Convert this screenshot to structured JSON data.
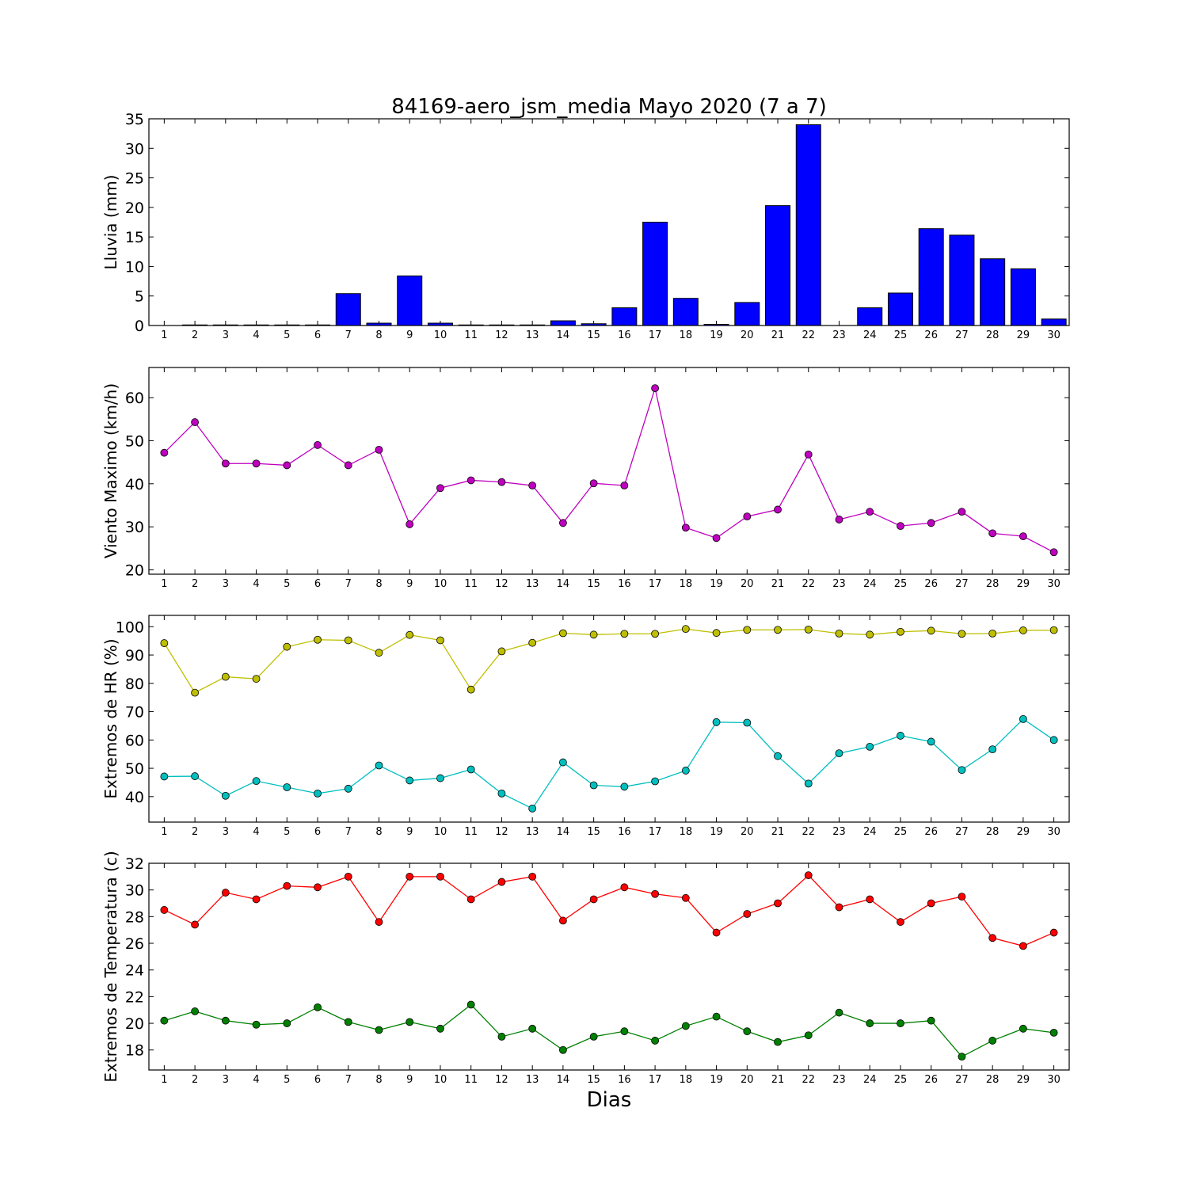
{
  "title": "84169-aero_jsm_media Mayo 2020  (7 a 7)",
  "xlabel": "Dias",
  "chart_data": [
    {
      "type": "bar",
      "ylabel": "Lluvia (mm)",
      "ylim": [
        0,
        35
      ],
      "yticks": [
        0,
        5,
        10,
        15,
        20,
        25,
        30,
        35
      ],
      "categories": [
        1,
        2,
        3,
        4,
        5,
        6,
        7,
        8,
        9,
        10,
        11,
        12,
        13,
        14,
        15,
        16,
        17,
        18,
        19,
        20,
        21,
        22,
        23,
        24,
        25,
        26,
        27,
        28,
        29,
        30
      ],
      "series": [
        {
          "color": "#0000ff",
          "values": [
            0,
            0.1,
            0.1,
            0.1,
            0.1,
            0.1,
            5.4,
            0.4,
            8.4,
            0.4,
            0.1,
            0.1,
            0.1,
            0.8,
            0.3,
            3.0,
            17.5,
            4.6,
            0.2,
            3.9,
            20.3,
            34.0,
            0,
            3.0,
            5.5,
            16.4,
            15.3,
            11.3,
            9.6,
            1.1
          ]
        }
      ],
      "grid": false
    },
    {
      "type": "line",
      "ylabel": "Viento Maximo (km/h)",
      "ylim": [
        19,
        67
      ],
      "yticks": [
        20,
        30,
        40,
        50,
        60
      ],
      "categories": [
        1,
        2,
        3,
        4,
        5,
        6,
        7,
        8,
        9,
        10,
        11,
        12,
        13,
        14,
        15,
        16,
        17,
        18,
        19,
        20,
        21,
        22,
        23,
        24,
        25,
        26,
        27,
        28,
        29,
        30
      ],
      "series": [
        {
          "color": "#bf00bf",
          "values": [
            47.2,
            54.3,
            44.7,
            44.7,
            44.3,
            49.0,
            44.3,
            47.9,
            30.6,
            39.0,
            40.8,
            40.4,
            39.6,
            30.9,
            40.1,
            39.6,
            62.2,
            29.8,
            27.4,
            32.4,
            34.0,
            46.8,
            31.7,
            33.5,
            30.2,
            30.9,
            33.5,
            28.5,
            27.8,
            24.1
          ]
        }
      ],
      "grid": false
    },
    {
      "type": "line",
      "ylabel": "Extremos de HR (%)",
      "ylim": [
        31,
        104
      ],
      "yticks": [
        40,
        50,
        60,
        70,
        80,
        90,
        100
      ],
      "categories": [
        1,
        2,
        3,
        4,
        5,
        6,
        7,
        8,
        9,
        10,
        11,
        12,
        13,
        14,
        15,
        16,
        17,
        18,
        19,
        20,
        21,
        22,
        23,
        24,
        25,
        26,
        27,
        28,
        29,
        30
      ],
      "series": [
        {
          "color": "#bfbf00",
          "values": [
            94.2,
            76.7,
            82.3,
            81.6,
            92.9,
            95.4,
            95.2,
            90.8,
            97.1,
            95.2,
            77.8,
            91.3,
            94.3,
            97.7,
            97.2,
            97.5,
            97.5,
            99.2,
            97.8,
            98.9,
            98.9,
            99.0,
            97.6,
            97.2,
            98.2,
            98.6,
            97.5,
            97.6,
            98.7,
            98.8
          ]
        },
        {
          "color": "#00bfbf",
          "values": [
            47.1,
            47.2,
            40.3,
            45.5,
            43.3,
            41.1,
            42.8,
            51.0,
            45.7,
            46.5,
            49.6,
            41.1,
            35.8,
            52.1,
            44.0,
            43.5,
            45.4,
            49.2,
            66.3,
            66.1,
            54.3,
            44.6,
            55.3,
            57.6,
            61.5,
            59.4,
            49.4,
            56.7,
            67.4,
            60.0
          ]
        }
      ],
      "grid": false
    },
    {
      "type": "line",
      "ylabel": "Extremos de Temperatura (c)",
      "ylim": [
        16.5,
        32
      ],
      "yticks": [
        18,
        20,
        22,
        24,
        26,
        28,
        30,
        32
      ],
      "categories": [
        1,
        2,
        3,
        4,
        5,
        6,
        7,
        8,
        9,
        10,
        11,
        12,
        13,
        14,
        15,
        16,
        17,
        18,
        19,
        20,
        21,
        22,
        23,
        24,
        25,
        26,
        27,
        28,
        29,
        30
      ],
      "series": [
        {
          "color": "#ff0000",
          "values": [
            28.5,
            27.4,
            29.8,
            29.3,
            30.3,
            30.2,
            31.0,
            27.6,
            31.0,
            31.0,
            29.3,
            30.6,
            31.0,
            27.7,
            29.3,
            30.2,
            29.7,
            29.4,
            26.8,
            28.2,
            29.0,
            31.1,
            28.7,
            29.3,
            27.6,
            29.0,
            29.5,
            26.4,
            25.8,
            26.8
          ]
        },
        {
          "color": "#008000",
          "values": [
            20.2,
            20.9,
            20.2,
            19.9,
            20.0,
            21.2,
            20.1,
            19.5,
            20.1,
            19.6,
            21.4,
            19.0,
            19.6,
            18.0,
            19.0,
            19.4,
            18.7,
            19.8,
            20.5,
            19.4,
            18.6,
            19.1,
            20.8,
            20.0,
            20.0,
            20.2,
            17.5,
            18.7,
            19.6,
            19.3
          ]
        }
      ],
      "grid": false
    }
  ]
}
